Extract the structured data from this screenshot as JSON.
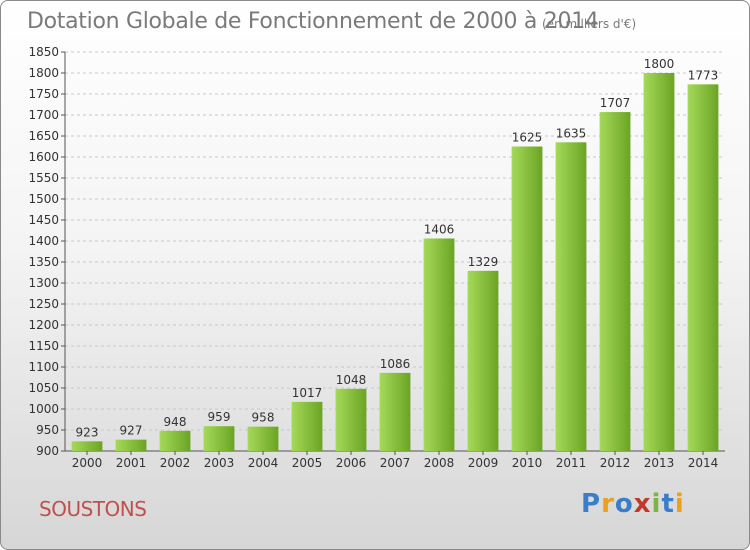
{
  "header": {
    "title": "Dotation Globale de Fonctionnement de 2000 à 2014",
    "unit": "(en milliers d'€)"
  },
  "footer": {
    "commune": "SOUSTONS",
    "logo_parts": [
      "P",
      "r",
      "o",
      "x",
      "i",
      "t",
      "i"
    ]
  },
  "colors": {
    "bar_light": "#a6d95a",
    "bar_dark": "#6aa423",
    "commune_text": "#c0504d",
    "logo": [
      "#3a7dc9",
      "#e8a21d",
      "#3a7dc9",
      "#c0392b",
      "#7cb342",
      "#3a7dc9",
      "#e8a21d"
    ]
  },
  "chart_data": {
    "type": "bar",
    "title": "Dotation Globale de Fonctionnement de 2000 à 2014",
    "subtitle": "(en milliers d'€)",
    "categories": [
      "2000",
      "2001",
      "2002",
      "2003",
      "2004",
      "2005",
      "2006",
      "2007",
      "2008",
      "2009",
      "2010",
      "2011",
      "2012",
      "2013",
      "2014"
    ],
    "values": [
      923,
      927,
      948,
      959,
      958,
      1017,
      1048,
      1086,
      1406,
      1329,
      1625,
      1635,
      1707,
      1800,
      1773
    ],
    "ylim": [
      900,
      1850
    ],
    "yticks": [
      900,
      950,
      1000,
      1050,
      1100,
      1150,
      1200,
      1250,
      1300,
      1350,
      1400,
      1450,
      1500,
      1550,
      1600,
      1650,
      1700,
      1750,
      1800,
      1850
    ],
    "grid": true,
    "legend": "none"
  }
}
